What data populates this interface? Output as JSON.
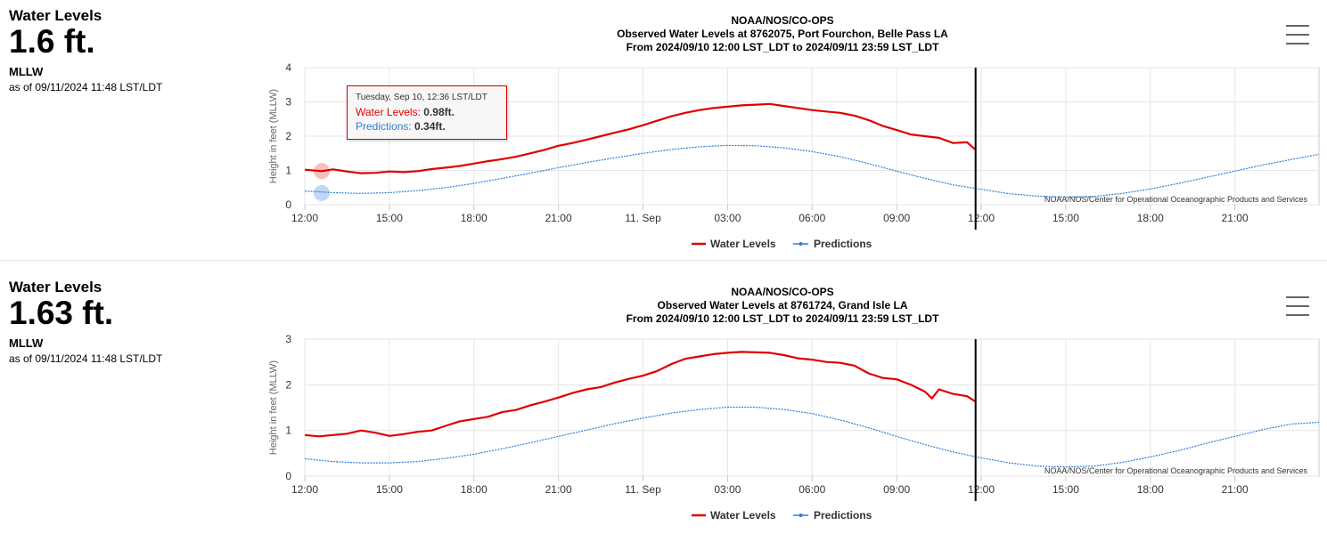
{
  "panels": [
    {
      "info": {
        "title": "Water Levels",
        "value": "1.6 ft.",
        "datum": "MLLW",
        "as_of": "as of 09/11/2024 11:48 LST/LDT"
      },
      "tooltip": {
        "header": "Tuesday, Sep 10, 12:36 LST/LDT",
        "rows": [
          {
            "label": "Water Levels:",
            "value": "0.98ft.",
            "color": "#e00000"
          },
          {
            "label": "Predictions:",
            "value": "0.34ft.",
            "color": "#2e7fd9"
          }
        ]
      }
    },
    {
      "info": {
        "title": "Water Levels",
        "value": "1.63 ft.",
        "datum": "MLLW",
        "as_of": "as of 09/11/2024 11:48 LST/LDT"
      }
    }
  ],
  "chart_data": [
    {
      "type": "line",
      "title": [
        "NOAA/NOS/CO-OPS",
        "Observed Water Levels at 8762075, Port Fourchon, Belle Pass LA",
        "From 2024/09/10 12:00 LST_LDT to 2024/09/11 23:59 LST_LDT"
      ],
      "ylabel": "Height in feet (MLLW)",
      "xlim": [
        "2024-09-10 12:00",
        "2024-09-11 23:59"
      ],
      "ylim": [
        0,
        4
      ],
      "yticks": [
        "0",
        "1",
        "2",
        "3",
        "4"
      ],
      "xticks": [
        {
          "t": "2024-09-10 12:00",
          "label": "12:00"
        },
        {
          "t": "2024-09-10 15:00",
          "label": "15:00"
        },
        {
          "t": "2024-09-10 18:00",
          "label": "18:00"
        },
        {
          "t": "2024-09-10 21:00",
          "label": "21:00"
        },
        {
          "t": "2024-09-11 00:00",
          "label": "11. Sep"
        },
        {
          "t": "2024-09-11 03:00",
          "label": "03:00"
        },
        {
          "t": "2024-09-11 06:00",
          "label": "06:00"
        },
        {
          "t": "2024-09-11 09:00",
          "label": "09:00"
        },
        {
          "t": "2024-09-11 12:00",
          "label": "12:00"
        },
        {
          "t": "2024-09-11 15:00",
          "label": "15:00"
        },
        {
          "t": "2024-09-11 18:00",
          "label": "18:00"
        },
        {
          "t": "2024-09-11 21:00",
          "label": "21:00"
        }
      ],
      "current_time": "2024-09-11 11:48",
      "credit": "NOAA/NOS/Center for Operational Oceanographic Products and Services",
      "legend": [
        "Water Levels",
        "Predictions"
      ],
      "highlight": {
        "t": "2024-09-10 12:36",
        "water": 0.98,
        "pred": 0.34
      },
      "series": [
        {
          "name": "Water Levels",
          "color": "#e00000",
          "points": [
            [
              "2024-09-10 12:00",
              1.02
            ],
            [
              "2024-09-10 12:36",
              0.98
            ],
            [
              "2024-09-10 13:00",
              1.03
            ],
            [
              "2024-09-10 13:30",
              0.97
            ],
            [
              "2024-09-10 14:00",
              0.92
            ],
            [
              "2024-09-10 14:30",
              0.93
            ],
            [
              "2024-09-10 15:00",
              0.97
            ],
            [
              "2024-09-10 15:30",
              0.95
            ],
            [
              "2024-09-10 16:00",
              0.98
            ],
            [
              "2024-09-10 16:30",
              1.04
            ],
            [
              "2024-09-10 17:00",
              1.08
            ],
            [
              "2024-09-10 17:30",
              1.13
            ],
            [
              "2024-09-10 18:00",
              1.2
            ],
            [
              "2024-09-10 18:30",
              1.27
            ],
            [
              "2024-09-10 19:00",
              1.33
            ],
            [
              "2024-09-10 19:30",
              1.4
            ],
            [
              "2024-09-10 20:00",
              1.5
            ],
            [
              "2024-09-10 20:30",
              1.6
            ],
            [
              "2024-09-10 21:00",
              1.72
            ],
            [
              "2024-09-10 21:30",
              1.8
            ],
            [
              "2024-09-10 22:00",
              1.9
            ],
            [
              "2024-09-10 22:30",
              2.0
            ],
            [
              "2024-09-10 23:00",
              2.1
            ],
            [
              "2024-09-10 23:30",
              2.2
            ],
            [
              "2024-09-11 00:00",
              2.32
            ],
            [
              "2024-09-11 00:30",
              2.45
            ],
            [
              "2024-09-11 01:00",
              2.58
            ],
            [
              "2024-09-11 01:30",
              2.68
            ],
            [
              "2024-09-11 02:00",
              2.76
            ],
            [
              "2024-09-11 02:30",
              2.82
            ],
            [
              "2024-09-11 03:00",
              2.86
            ],
            [
              "2024-09-11 03:30",
              2.9
            ],
            [
              "2024-09-11 04:00",
              2.92
            ],
            [
              "2024-09-11 04:30",
              2.94
            ],
            [
              "2024-09-11 05:00",
              2.88
            ],
            [
              "2024-09-11 05:30",
              2.82
            ],
            [
              "2024-09-11 06:00",
              2.76
            ],
            [
              "2024-09-11 06:30",
              2.72
            ],
            [
              "2024-09-11 07:00",
              2.68
            ],
            [
              "2024-09-11 07:30",
              2.6
            ],
            [
              "2024-09-11 08:00",
              2.47
            ],
            [
              "2024-09-11 08:30",
              2.3
            ],
            [
              "2024-09-11 09:00",
              2.18
            ],
            [
              "2024-09-11 09:30",
              2.05
            ],
            [
              "2024-09-11 10:00",
              2.0
            ],
            [
              "2024-09-11 10:30",
              1.95
            ],
            [
              "2024-09-11 11:00",
              1.8
            ],
            [
              "2024-09-11 11:30",
              1.82
            ],
            [
              "2024-09-11 11:48",
              1.6
            ]
          ]
        },
        {
          "name": "Predictions",
          "color": "#2e7fd9",
          "points": [
            [
              "2024-09-10 12:00",
              0.4
            ],
            [
              "2024-09-10 13:00",
              0.35
            ],
            [
              "2024-09-10 14:00",
              0.33
            ],
            [
              "2024-09-10 15:00",
              0.35
            ],
            [
              "2024-09-10 16:00",
              0.41
            ],
            [
              "2024-09-10 17:00",
              0.5
            ],
            [
              "2024-09-10 18:00",
              0.62
            ],
            [
              "2024-09-10 19:00",
              0.77
            ],
            [
              "2024-09-10 20:00",
              0.92
            ],
            [
              "2024-09-10 21:00",
              1.08
            ],
            [
              "2024-09-10 22:00",
              1.23
            ],
            [
              "2024-09-10 23:00",
              1.37
            ],
            [
              "2024-09-11 00:00",
              1.5
            ],
            [
              "2024-09-11 01:00",
              1.61
            ],
            [
              "2024-09-11 02:00",
              1.69
            ],
            [
              "2024-09-11 03:00",
              1.73
            ],
            [
              "2024-09-11 04:00",
              1.72
            ],
            [
              "2024-09-11 05:00",
              1.66
            ],
            [
              "2024-09-11 06:00",
              1.55
            ],
            [
              "2024-09-11 07:00",
              1.4
            ],
            [
              "2024-09-11 08:00",
              1.2
            ],
            [
              "2024-09-11 09:00",
              0.98
            ],
            [
              "2024-09-11 10:00",
              0.77
            ],
            [
              "2024-09-11 11:00",
              0.58
            ],
            [
              "2024-09-11 12:00",
              0.45
            ],
            [
              "2024-09-11 13:00",
              0.32
            ],
            [
              "2024-09-11 14:00",
              0.25
            ],
            [
              "2024-09-11 15:00",
              0.22
            ],
            [
              "2024-09-11 16:00",
              0.24
            ],
            [
              "2024-09-11 17:00",
              0.33
            ],
            [
              "2024-09-11 18:00",
              0.46
            ],
            [
              "2024-09-11 19:00",
              0.62
            ],
            [
              "2024-09-11 20:00",
              0.8
            ],
            [
              "2024-09-11 21:00",
              0.98
            ],
            [
              "2024-09-11 22:00",
              1.16
            ],
            [
              "2024-09-11 23:00",
              1.32
            ],
            [
              "2024-09-11 23:59",
              1.47
            ]
          ]
        }
      ]
    },
    {
      "type": "line",
      "title": [
        "NOAA/NOS/CO-OPS",
        "Observed Water Levels at 8761724, Grand Isle LA",
        "From 2024/09/10 12:00 LST_LDT to 2024/09/11 23:59 LST_LDT"
      ],
      "ylabel": "Height in feet (MLLW)",
      "xlim": [
        "2024-09-10 12:00",
        "2024-09-11 23:59"
      ],
      "ylim": [
        0,
        3
      ],
      "yticks": [
        "0",
        "1",
        "2",
        "3"
      ],
      "xticks": [
        {
          "t": "2024-09-10 12:00",
          "label": "12:00"
        },
        {
          "t": "2024-09-10 15:00",
          "label": "15:00"
        },
        {
          "t": "2024-09-10 18:00",
          "label": "18:00"
        },
        {
          "t": "2024-09-10 21:00",
          "label": "21:00"
        },
        {
          "t": "2024-09-11 00:00",
          "label": "11. Sep"
        },
        {
          "t": "2024-09-11 03:00",
          "label": "03:00"
        },
        {
          "t": "2024-09-11 06:00",
          "label": "06:00"
        },
        {
          "t": "2024-09-11 09:00",
          "label": "09:00"
        },
        {
          "t": "2024-09-11 12:00",
          "label": "12:00"
        },
        {
          "t": "2024-09-11 15:00",
          "label": "15:00"
        },
        {
          "t": "2024-09-11 18:00",
          "label": "18:00"
        },
        {
          "t": "2024-09-11 21:00",
          "label": "21:00"
        }
      ],
      "current_time": "2024-09-11 11:48",
      "credit": "NOAA/NOS/Center for Operational Oceanographic Products and Services",
      "legend": [
        "Water Levels",
        "Predictions"
      ],
      "series": [
        {
          "name": "Water Levels",
          "color": "#e00000",
          "points": [
            [
              "2024-09-10 12:00",
              0.9
            ],
            [
              "2024-09-10 12:30",
              0.87
            ],
            [
              "2024-09-10 13:00",
              0.9
            ],
            [
              "2024-09-10 13:30",
              0.93
            ],
            [
              "2024-09-10 14:00",
              1.0
            ],
            [
              "2024-09-10 14:30",
              0.95
            ],
            [
              "2024-09-10 15:00",
              0.88
            ],
            [
              "2024-09-10 15:30",
              0.92
            ],
            [
              "2024-09-10 16:00",
              0.97
            ],
            [
              "2024-09-10 16:30",
              1.0
            ],
            [
              "2024-09-10 17:00",
              1.1
            ],
            [
              "2024-09-10 17:30",
              1.2
            ],
            [
              "2024-09-10 18:00",
              1.25
            ],
            [
              "2024-09-10 18:30",
              1.3
            ],
            [
              "2024-09-10 19:00",
              1.4
            ],
            [
              "2024-09-10 19:30",
              1.45
            ],
            [
              "2024-09-10 20:00",
              1.55
            ],
            [
              "2024-09-10 20:30",
              1.63
            ],
            [
              "2024-09-10 21:00",
              1.72
            ],
            [
              "2024-09-10 21:30",
              1.82
            ],
            [
              "2024-09-10 22:00",
              1.9
            ],
            [
              "2024-09-10 22:30",
              1.95
            ],
            [
              "2024-09-10 23:00",
              2.05
            ],
            [
              "2024-09-10 23:30",
              2.13
            ],
            [
              "2024-09-11 00:00",
              2.2
            ],
            [
              "2024-09-11 00:30",
              2.3
            ],
            [
              "2024-09-11 01:00",
              2.45
            ],
            [
              "2024-09-11 01:30",
              2.57
            ],
            [
              "2024-09-11 02:00",
              2.62
            ],
            [
              "2024-09-11 02:30",
              2.67
            ],
            [
              "2024-09-11 03:00",
              2.7
            ],
            [
              "2024-09-11 03:30",
              2.72
            ],
            [
              "2024-09-11 04:00",
              2.71
            ],
            [
              "2024-09-11 04:30",
              2.7
            ],
            [
              "2024-09-11 05:00",
              2.65
            ],
            [
              "2024-09-11 05:30",
              2.58
            ],
            [
              "2024-09-11 06:00",
              2.55
            ],
            [
              "2024-09-11 06:30",
              2.5
            ],
            [
              "2024-09-11 07:00",
              2.48
            ],
            [
              "2024-09-11 07:30",
              2.42
            ],
            [
              "2024-09-11 08:00",
              2.25
            ],
            [
              "2024-09-11 08:30",
              2.15
            ],
            [
              "2024-09-11 09:00",
              2.12
            ],
            [
              "2024-09-11 09:30",
              2.0
            ],
            [
              "2024-09-11 10:00",
              1.85
            ],
            [
              "2024-09-11 10:15",
              1.7
            ],
            [
              "2024-09-11 10:30",
              1.9
            ],
            [
              "2024-09-11 11:00",
              1.8
            ],
            [
              "2024-09-11 11:30",
              1.75
            ],
            [
              "2024-09-11 11:48",
              1.63
            ]
          ]
        },
        {
          "name": "Predictions",
          "color": "#2e7fd9",
          "points": [
            [
              "2024-09-10 12:00",
              0.38
            ],
            [
              "2024-09-10 13:00",
              0.32
            ],
            [
              "2024-09-10 14:00",
              0.29
            ],
            [
              "2024-09-10 15:00",
              0.29
            ],
            [
              "2024-09-10 16:00",
              0.32
            ],
            [
              "2024-09-10 17:00",
              0.39
            ],
            [
              "2024-09-10 18:00",
              0.48
            ],
            [
              "2024-09-10 19:00",
              0.6
            ],
            [
              "2024-09-10 20:00",
              0.73
            ],
            [
              "2024-09-10 21:00",
              0.87
            ],
            [
              "2024-09-10 22:00",
              1.01
            ],
            [
              "2024-09-10 23:00",
              1.15
            ],
            [
              "2024-09-11 00:00",
              1.27
            ],
            [
              "2024-09-11 01:00",
              1.38
            ],
            [
              "2024-09-11 02:00",
              1.46
            ],
            [
              "2024-09-11 03:00",
              1.51
            ],
            [
              "2024-09-11 04:00",
              1.51
            ],
            [
              "2024-09-11 05:00",
              1.46
            ],
            [
              "2024-09-11 06:00",
              1.37
            ],
            [
              "2024-09-11 07:00",
              1.23
            ],
            [
              "2024-09-11 08:00",
              1.06
            ],
            [
              "2024-09-11 09:00",
              0.87
            ],
            [
              "2024-09-11 10:00",
              0.69
            ],
            [
              "2024-09-11 11:00",
              0.53
            ],
            [
              "2024-09-11 12:00",
              0.4
            ],
            [
              "2024-09-11 13:00",
              0.29
            ],
            [
              "2024-09-11 14:00",
              0.22
            ],
            [
              "2024-09-11 15:00",
              0.2
            ],
            [
              "2024-09-11 16:00",
              0.22
            ],
            [
              "2024-09-11 17:00",
              0.3
            ],
            [
              "2024-09-11 18:00",
              0.42
            ],
            [
              "2024-09-11 19:00",
              0.56
            ],
            [
              "2024-09-11 20:00",
              0.72
            ],
            [
              "2024-09-11 21:00",
              0.87
            ],
            [
              "2024-09-11 22:00",
              1.02
            ],
            [
              "2024-09-11 23:00",
              1.14
            ],
            [
              "2024-09-11 23:59",
              1.18
            ]
          ]
        }
      ]
    }
  ]
}
